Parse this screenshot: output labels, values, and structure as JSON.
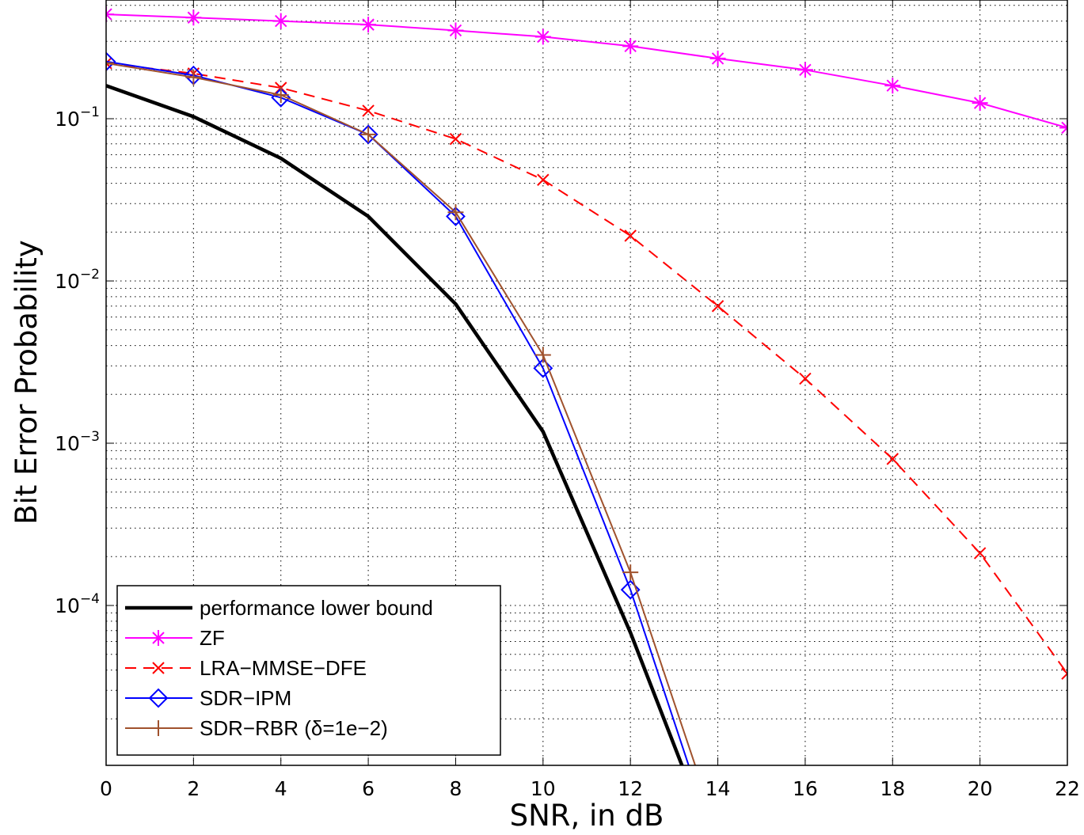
{
  "chart_data": {
    "type": "line",
    "title": "",
    "xlabel": "SNR, in dB",
    "ylabel": "Bit Error Probability",
    "y_scale": "log",
    "xlim": [
      0,
      22
    ],
    "ylim": [
      1e-05,
      0.5
    ],
    "x_ticks": [
      0,
      2,
      4,
      6,
      8,
      10,
      12,
      14,
      16,
      18,
      20,
      22
    ],
    "y_ticks": [
      {
        "value": 0.1,
        "base": "10",
        "exp": "−1"
      },
      {
        "value": 0.01,
        "base": "10",
        "exp": "−2"
      },
      {
        "value": 0.001,
        "base": "10",
        "exp": "−3"
      },
      {
        "value": 0.0001,
        "base": "10",
        "exp": "−4"
      }
    ],
    "grid": true,
    "legend_position": "bottom-left",
    "series": [
      {
        "name": "performance lower bound",
        "color": "#000000",
        "marker": "none",
        "dash": "solid",
        "width": "bold",
        "x": [
          0,
          2,
          4,
          6,
          8,
          10,
          12,
          13.2
        ],
        "y": [
          0.16,
          0.103,
          0.057,
          0.025,
          0.0072,
          0.00118,
          6.8e-05,
          1e-05
        ]
      },
      {
        "name": "ZF",
        "color": "#ff00ff",
        "marker": "asterisk",
        "dash": "solid",
        "width": "normal",
        "x": [
          0,
          2,
          4,
          6,
          8,
          10,
          12,
          14,
          16,
          18,
          20,
          22
        ],
        "y": [
          0.44,
          0.42,
          0.4,
          0.38,
          0.35,
          0.32,
          0.28,
          0.235,
          0.2,
          0.16,
          0.125,
          0.088
        ]
      },
      {
        "name": "LRA−MMSE−DFE",
        "color": "#ff0000",
        "marker": "x",
        "dash": "dashed",
        "width": "normal",
        "x": [
          0,
          2,
          4,
          6,
          8,
          10,
          12,
          14,
          16,
          18,
          20,
          22
        ],
        "y": [
          0.22,
          0.19,
          0.155,
          0.112,
          0.075,
          0.042,
          0.019,
          0.007,
          0.0025,
          0.0008,
          0.00021,
          3.8e-05
        ]
      },
      {
        "name": "SDR−IPM",
        "color": "#0000ff",
        "marker": "diamond",
        "dash": "solid",
        "width": "normal",
        "x": [
          0,
          2,
          4,
          6,
          8,
          10,
          12,
          13.35
        ],
        "y": [
          0.225,
          0.185,
          0.135,
          0.08,
          0.025,
          0.0029,
          0.000125,
          1e-05
        ]
      },
      {
        "name": "SDR−RBR (δ=1e−2)",
        "color": "#a0522d",
        "marker": "plus",
        "dash": "solid",
        "width": "normal",
        "x": [
          0,
          2,
          4,
          6,
          8,
          10,
          12,
          13.5
        ],
        "y": [
          0.22,
          0.18,
          0.14,
          0.08,
          0.0265,
          0.0035,
          0.00016,
          1e-05
        ]
      }
    ]
  }
}
